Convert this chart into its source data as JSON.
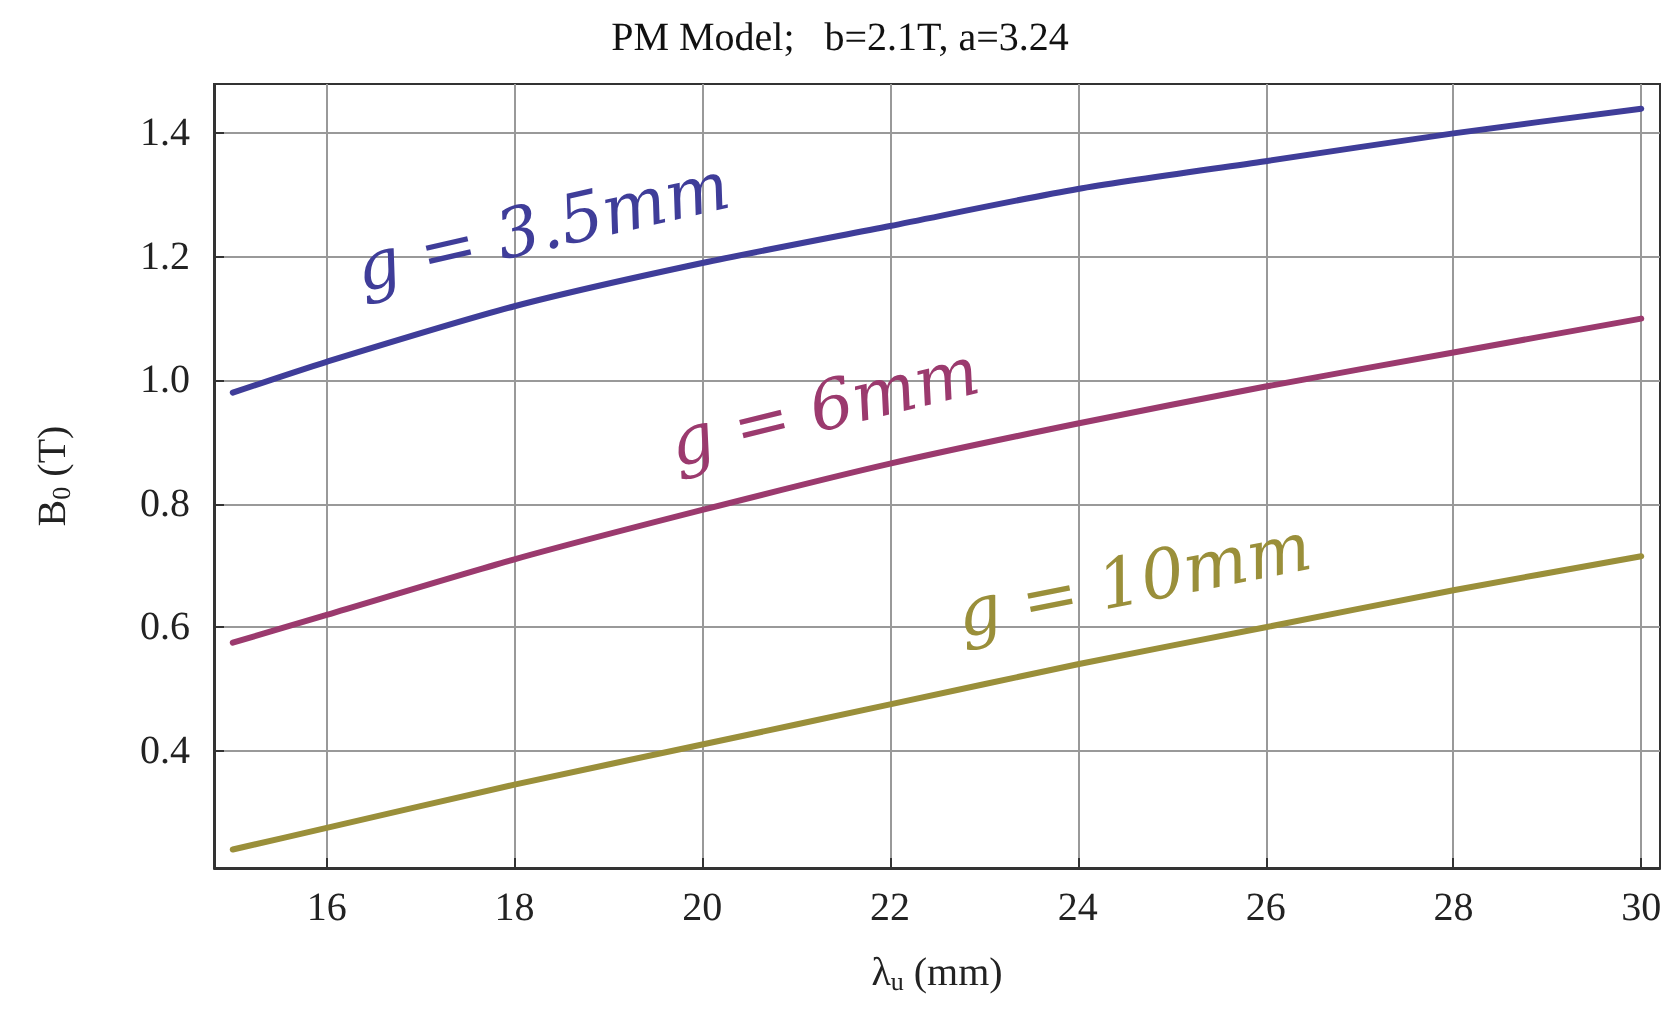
{
  "chart_data": {
    "type": "line",
    "title": "PM Model;   b=2.1T, a=3.24",
    "xlabel": "λ$_{u}$ (mm)",
    "ylabel": "B$_{0}$ (T)",
    "x": [
      15,
      16,
      18,
      20,
      22,
      24,
      26,
      28,
      30
    ],
    "series": [
      {
        "name": "g = 3.5mm",
        "color": "#3f3d99",
        "values": [
          0.98,
          1.03,
          1.12,
          1.19,
          1.25,
          1.31,
          1.355,
          1.4,
          1.44
        ]
      },
      {
        "name": "g = 6mm",
        "color": "#9b3a6e",
        "values": [
          0.575,
          0.62,
          0.71,
          0.79,
          0.865,
          0.93,
          0.99,
          1.045,
          1.1
        ]
      },
      {
        "name": "g = 10mm",
        "color": "#9a8f3a",
        "values": [
          0.24,
          0.275,
          0.345,
          0.41,
          0.475,
          0.54,
          0.6,
          0.66,
          0.715
        ]
      }
    ],
    "xlim": [
      14.8,
      30.2
    ],
    "xticks": [
      16,
      18,
      20,
      22,
      24,
      26,
      28,
      30
    ],
    "ylim": [
      0.21,
      1.48
    ],
    "yticks": [
      0.4,
      0.6,
      0.8,
      {
        "value": 1,
        "label": "1.0"
      },
      1.2,
      1.4
    ],
    "grid": true,
    "marker": "none",
    "line_style": "solid"
  }
}
